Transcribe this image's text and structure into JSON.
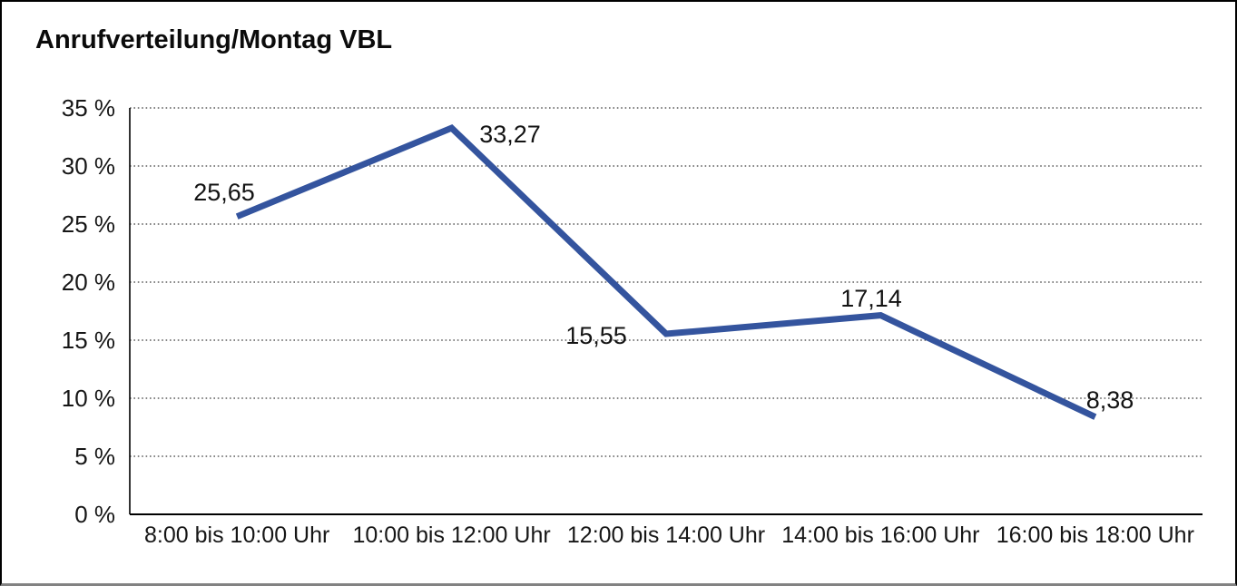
{
  "chart_data": {
    "type": "line",
    "title": "Anrufverteilung/Montag VBL",
    "categories": [
      "8:00 bis 10:00 Uhr",
      "10:00 bis 12:00 Uhr",
      "12:00 bis 14:00 Uhr",
      "14:00 bis 16:00 Uhr",
      "16:00 bis 18:00 Uhr"
    ],
    "values": [
      25.65,
      33.27,
      15.55,
      17.14,
      8.38
    ],
    "point_labels": [
      "25,65",
      "33,27",
      "15,55",
      "17,14",
      "8,38"
    ],
    "xlabel": "",
    "ylabel": "",
    "y_tick_labels": [
      "35 %",
      "30 %",
      "25 %",
      "20 %",
      "15 %",
      "10 %",
      "5 %",
      "0 %"
    ],
    "y_tick_values": [
      35,
      30,
      25,
      20,
      15,
      10,
      5,
      0
    ],
    "ylim": [
      0,
      35
    ],
    "grid": "dotted horizontal",
    "legend": "none",
    "line_color": "#34549E",
    "axis_color": "#000000",
    "text_color": "#131313",
    "background_color": "#FFFFFF"
  }
}
